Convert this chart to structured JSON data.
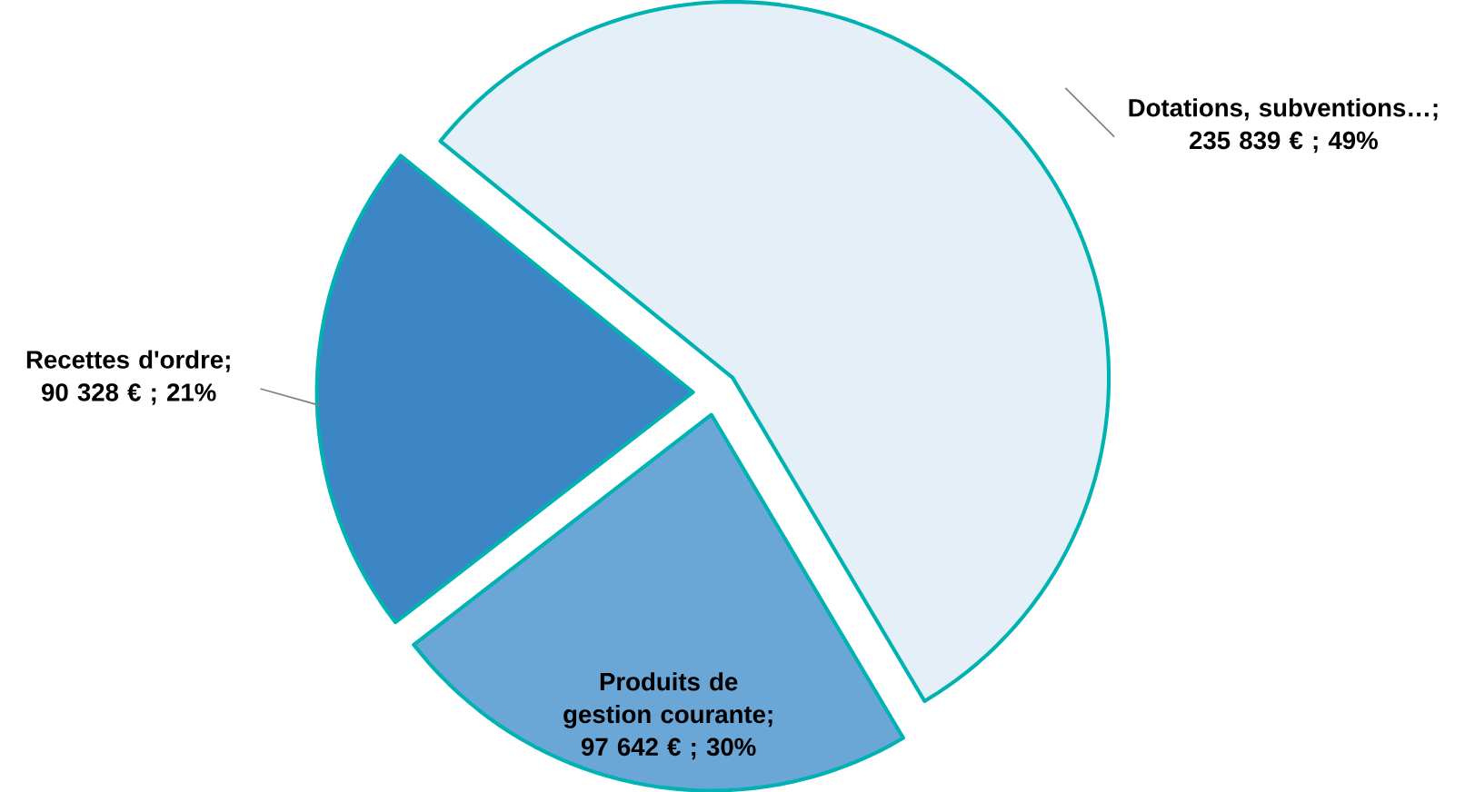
{
  "chart_data": {
    "type": "pie",
    "categories": [
      "Dotations, subventions…",
      "Produits de gestion courante",
      "Recettes d'ordre"
    ],
    "values": [
      235839,
      97642,
      90328
    ],
    "value_labels": [
      "; 235 839 € ; 49%",
      ";  97 642 € ; 30%",
      "; 90 328 € ; 21%"
    ],
    "colors": [
      "#e4eff8",
      "#6aa6d6",
      "#3d86c6"
    ]
  }
}
